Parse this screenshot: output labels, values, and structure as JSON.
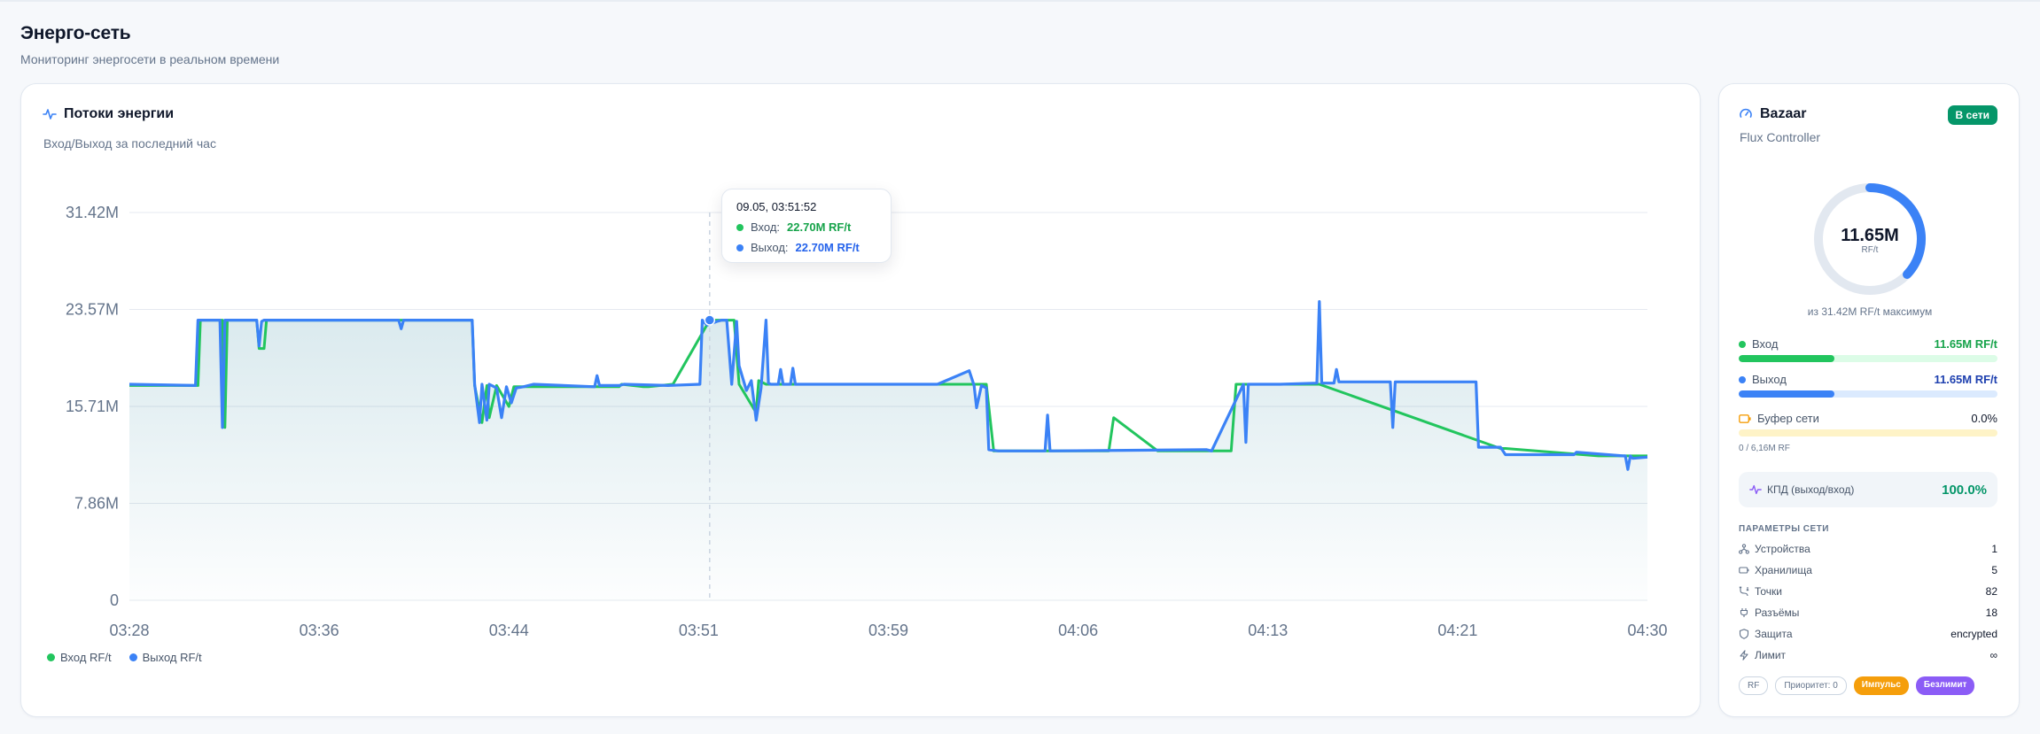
{
  "page": {
    "title": "Энерго-сеть",
    "subtitle": "Мониторинг энергосети в реальном времени"
  },
  "flow_card": {
    "title": "Потоки энергии",
    "subtitle": "Вход/Выход за последний час",
    "icon": "activity-icon"
  },
  "tooltip": {
    "time": "09.05, 03:51:52",
    "input_label": "Вход:",
    "input_value": "22.70M RF/t",
    "output_label": "Выход:",
    "output_value": "22.70M RF/t"
  },
  "legend": {
    "input": "Вход RF/t",
    "output": "Выход RF/t"
  },
  "colors": {
    "input": "#22c55e",
    "output": "#3b82f6",
    "area": "#0e7490",
    "online": "#059669",
    "buffer": "#f59e0b",
    "efficiency": "#8b5cf6"
  },
  "chart_data": {
    "type": "line",
    "y_ticks": [
      "0",
      "7.86M",
      "15.71M",
      "23.57M",
      "31.42M"
    ],
    "ylim": [
      0,
      31.42
    ],
    "x_ticks": [
      "03:28",
      "03:36",
      "03:44",
      "03:51",
      "03:59",
      "04:06",
      "04:13",
      "04:21",
      "04:30"
    ],
    "xlim": [
      0,
      62
    ],
    "grid": true,
    "legend_position": "bottom-left",
    "series": [
      {
        "name": "Вход RF/t",
        "x": [
          0,
          2.8,
          2.9,
          3.8,
          3.9,
          4.0,
          5.2,
          5.3,
          5.5,
          5.6,
          14.0,
          14.1,
          14.4,
          14.6,
          14.7,
          15.0,
          15.5,
          15.7,
          16.0,
          20.0,
          20.1,
          21.0,
          21.2,
          22.2,
          23.7,
          24.7,
          24.9,
          25.6,
          25.7,
          26.0,
          35.0,
          35.3,
          40.0,
          40.2,
          42.0,
          42.1,
          45.0,
          45.2,
          46.0,
          46.2,
          48.5,
          48.6,
          56.0,
          56.2,
          60.0,
          62
        ],
        "y": [
          17.4,
          17.4,
          22.7,
          22.7,
          14.0,
          22.7,
          22.7,
          20.4,
          20.4,
          22.7,
          22.7,
          17.4,
          14.4,
          17.4,
          14.8,
          17.4,
          15.7,
          17.3,
          17.3,
          17.3,
          17.5,
          17.3,
          17.3,
          17.5,
          22.7,
          22.7,
          17.5,
          15.2,
          17.8,
          17.5,
          17.5,
          12.1,
          12.1,
          14.8,
          12.1,
          12.1,
          12.1,
          17.5,
          17.5,
          17.5,
          17.5,
          17.5,
          12.3,
          12.3,
          11.7,
          11.7
        ]
      },
      {
        "name": "Выход RF/t",
        "x": [
          0,
          2.7,
          2.8,
          3.7,
          3.8,
          3.9,
          5.2,
          5.3,
          5.4,
          5.5,
          11.0,
          11.1,
          11.2,
          14.0,
          14.1,
          14.3,
          14.4,
          14.6,
          14.7,
          15.0,
          15.2,
          15.4,
          15.6,
          15.8,
          16.1,
          16.5,
          19.0,
          19.1,
          19.2,
          20.0,
          20.2,
          22.0,
          23.3,
          23.4,
          23.6,
          24.0,
          24.2,
          24.4,
          24.6,
          24.8,
          24.9,
          25.2,
          25.4,
          25.6,
          25.8,
          26.0,
          26.1,
          26.2,
          26.5,
          26.6,
          26.7,
          27.0,
          27.1,
          27.2,
          28.0,
          28.1,
          28.2,
          29.0,
          33.0,
          34.3,
          34.5,
          34.6,
          34.8,
          35.0,
          35.1,
          35.5,
          37.4,
          37.5,
          37.6,
          44.0,
          44.2,
          45.5,
          45.6,
          45.7,
          47.0,
          48.5,
          48.6,
          48.7,
          49.2,
          49.3,
          49.4,
          51.5,
          51.6,
          51.7,
          55.0,
          55.1,
          55.2,
          55.5,
          55.6,
          55.7,
          56.0,
          56.2,
          59.0,
          59.1,
          61.0,
          61.1,
          61.2,
          61.3,
          61.4,
          62
        ],
        "y": [
          17.5,
          17.4,
          22.7,
          22.7,
          14.0,
          22.7,
          22.7,
          20.6,
          22.6,
          22.7,
          22.7,
          22.0,
          22.7,
          22.7,
          17.5,
          14.4,
          17.5,
          14.6,
          17.5,
          17.2,
          14.8,
          17.3,
          16.0,
          17.2,
          17.3,
          17.5,
          17.3,
          18.2,
          17.4,
          17.4,
          17.5,
          17.4,
          17.5,
          22.7,
          22.3,
          22.6,
          22.7,
          22.7,
          17.5,
          22.6,
          19.0,
          17.0,
          17.8,
          14.6,
          17.2,
          22.7,
          17.6,
          17.5,
          17.5,
          18.7,
          17.5,
          17.5,
          18.8,
          17.5,
          17.5,
          17.5,
          17.5,
          17.5,
          17.5,
          18.6,
          17.4,
          15.6,
          17.4,
          17.2,
          12.2,
          12.1,
          12.1,
          15.0,
          12.1,
          12.2,
          12.1,
          17.5,
          12.8,
          17.5,
          17.5,
          17.6,
          24.2,
          17.6,
          17.6,
          18.7,
          17.7,
          17.7,
          14.0,
          17.7,
          17.7,
          12.4,
          12.4,
          12.4,
          12.4,
          12.4,
          12.4,
          11.8,
          11.8,
          12.0,
          11.7,
          11.7,
          10.6,
          11.7,
          11.5,
          11.6
        ]
      }
    ],
    "highlight": {
      "x": 23.7,
      "y": 22.7,
      "label": "09.05, 03:51:52"
    }
  },
  "device": {
    "icon": "gauge-icon",
    "name": "Bazaar",
    "type": "Flux Controller",
    "status": "В сети",
    "gauge_value": "11.65M",
    "gauge_unit": "RF/t",
    "gauge_fraction": 0.371,
    "gauge_caption": "из 31.42M RF/t максимум",
    "input_label": "Вход",
    "input_value": "11.65M RF/t",
    "input_fraction": 0.371,
    "output_label": "Выход",
    "output_value": "11.65M RF/t",
    "output_fraction": 0.371,
    "buffer_label": "Буфер сети",
    "buffer_value": "0.0%",
    "buffer_fraction": 0,
    "buffer_note": "0 / 6,16M RF",
    "efficiency_label": "КПД (выход/вход)",
    "efficiency_value": "100.0%"
  },
  "params": {
    "title": "ПАРАМЕТРЫ СЕТИ",
    "rows": [
      {
        "label": "Устройства",
        "value": "1",
        "icon": "network-icon"
      },
      {
        "label": "Хранилища",
        "value": "5",
        "icon": "battery-icon"
      },
      {
        "label": "Точки",
        "value": "82",
        "icon": "cable-icon"
      },
      {
        "label": "Разъёмы",
        "value": "18",
        "icon": "plug-icon"
      },
      {
        "label": "Защита",
        "value": "encrypted",
        "icon": "shield-icon"
      },
      {
        "label": "Лимит",
        "value": "∞",
        "icon": "bolt-icon"
      }
    ]
  },
  "tags": [
    "RF",
    "Приоритет: 0",
    "Импульс",
    "Безлимит"
  ]
}
